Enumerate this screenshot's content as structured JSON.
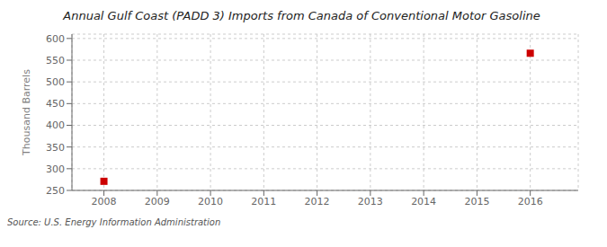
{
  "chart_data": {
    "type": "scatter",
    "title": "Annual Gulf Coast (PADD 3) Imports from Canada of Conventional Motor Gasoline",
    "ylabel": "Thousand Barrels",
    "annotations": [
      "Source: U.S. Energy Information Administration"
    ],
    "x": [
      2008,
      2016
    ],
    "values": [
      271,
      566
    ],
    "color": "#cc0000",
    "marker": "square",
    "xlim": [
      2007.4,
      2016.9
    ],
    "ylim": [
      250,
      610
    ],
    "xticks": [
      2008,
      2009,
      2010,
      2011,
      2012,
      2013,
      2014,
      2015,
      2016
    ],
    "yticks": [
      250,
      300,
      350,
      400,
      450,
      500,
      550,
      600
    ],
    "grid": true
  }
}
